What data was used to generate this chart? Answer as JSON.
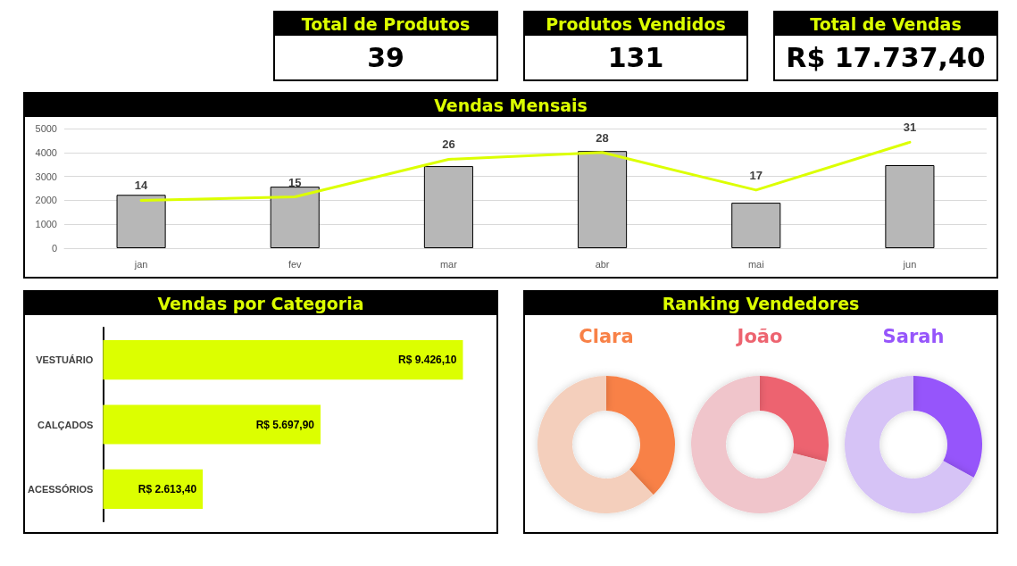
{
  "chart_data": [
    {
      "type": "other",
      "title": "Total de Produtos",
      "annotations": [
        "39"
      ]
    },
    {
      "type": "other",
      "title": "Produtos Vendidos",
      "annotations": [
        "131"
      ]
    },
    {
      "type": "other",
      "title": "Total de Vendas",
      "annotations": [
        "R$ 17.737,40"
      ]
    },
    {
      "type": "bar",
      "title": "Vendas Mensais",
      "categories": [
        "jan",
        "fev",
        "mar",
        "abr",
        "mai",
        "jun"
      ],
      "series": [
        {
          "type": "bar",
          "color": "#b7b7b7",
          "values": [
            2230,
            2570,
            3430,
            4060,
            1900,
            3470
          ]
        },
        {
          "type": "line",
          "axis": "y2",
          "color": "#dcff00",
          "values": [
            14,
            15,
            26,
            28,
            17,
            31
          ],
          "value_labels": [
            "14",
            "15",
            "26",
            "28",
            "17",
            "31"
          ]
        }
      ],
      "ylim": [
        0,
        5000
      ],
      "yticks": [
        0,
        1000,
        2000,
        3000,
        4000,
        5000
      ],
      "y2lim": [
        0,
        35
      ],
      "grid": "y",
      "marker": "none"
    },
    {
      "type": "bar",
      "orientation": "horizontal",
      "title": "Vendas por Categoria",
      "categories": [
        "VESTUÁRIO",
        "CALÇADOS",
        "ACESSÓRIOS"
      ],
      "values": [
        9426.1,
        5697.9,
        2613.4
      ],
      "value_labels": [
        "R$ 9.426,10",
        "R$ 5.697,90",
        "R$ 2.613,40"
      ],
      "color": "#dcff00",
      "tick_labels": "y"
    },
    {
      "type": "other",
      "title": "Ranking Vendedores"
    },
    {
      "type": "donut",
      "title": "Clara",
      "categories": [
        null,
        null
      ],
      "values": [
        38,
        62
      ],
      "colors": [
        "#f88147",
        "#f4cfbc"
      ]
    },
    {
      "type": "donut",
      "title": "João",
      "categories": [
        null,
        null
      ],
      "values": [
        29,
        71
      ],
      "colors": [
        "#ed6470",
        "#f0c5cb"
      ]
    },
    {
      "type": "donut",
      "title": "Sarah",
      "categories": [
        null,
        null
      ],
      "values": [
        33,
        67
      ],
      "colors": [
        "#9655fb",
        "#d6c3f6"
      ]
    }
  ]
}
